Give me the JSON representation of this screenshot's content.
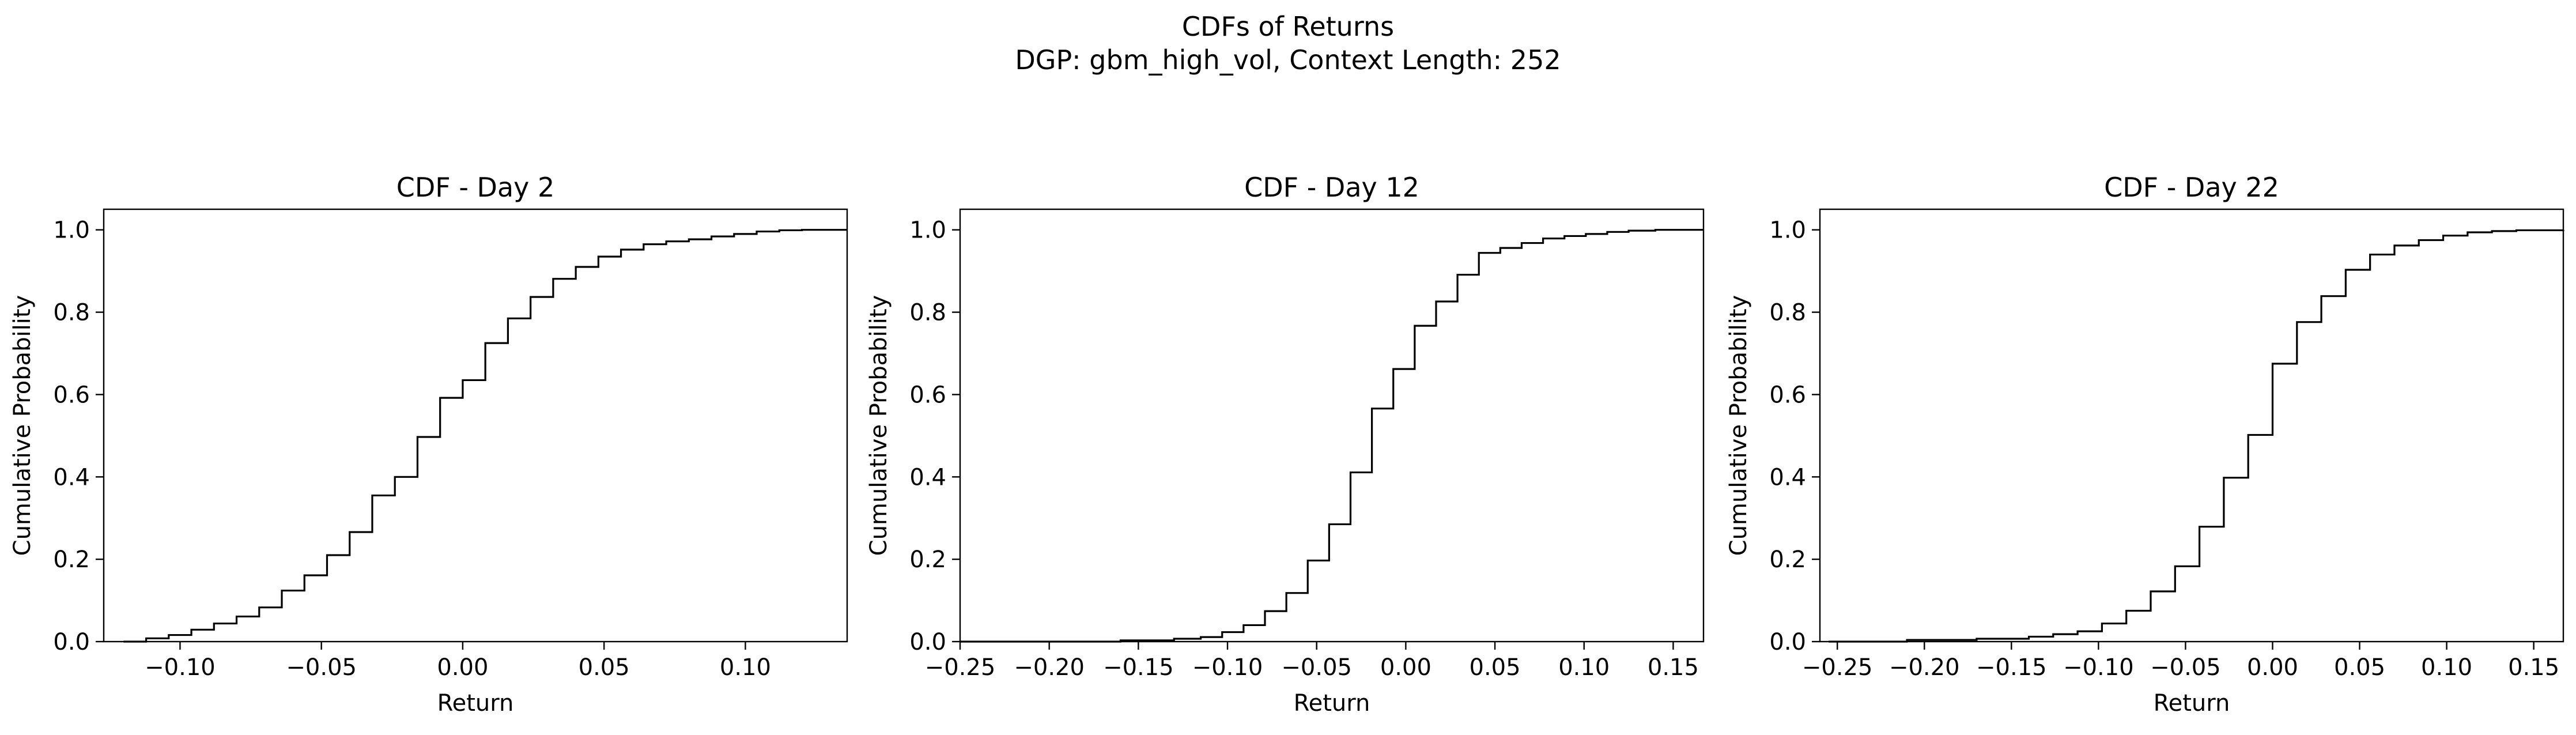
{
  "figure": {
    "title_line1": "CDFs of Returns",
    "title_line2": "DGP: gbm_high_vol, Context Length: 252"
  },
  "chart_data": [
    {
      "type": "line",
      "style": "step",
      "title": "CDF - Day 2",
      "xlabel": "Return",
      "ylabel": "Cumulative Probability",
      "xlim": [
        -0.127,
        0.136
      ],
      "ylim": [
        0,
        1.05
      ],
      "xticks": [
        -0.1,
        -0.05,
        0.0,
        0.05,
        0.1
      ],
      "xtick_labels": [
        "−0.10",
        "−0.05",
        "0.00",
        "0.05",
        "0.10"
      ],
      "yticks": [
        0.0,
        0.2,
        0.4,
        0.6,
        0.8,
        1.0
      ],
      "ytick_labels": [
        "0.0",
        "0.2",
        "0.4",
        "0.6",
        "0.8",
        "1.0"
      ],
      "grid": false,
      "line_color": "#000000",
      "x": [
        -0.12,
        -0.112,
        -0.104,
        -0.096,
        -0.088,
        -0.08,
        -0.072,
        -0.064,
        -0.056,
        -0.048,
        -0.04,
        -0.032,
        -0.024,
        -0.016,
        -0.008,
        0.0,
        0.008,
        0.016,
        0.024,
        0.032,
        0.04,
        0.048,
        0.056,
        0.064,
        0.072,
        0.08,
        0.088,
        0.096,
        0.104,
        0.112,
        0.12,
        0.128,
        0.136
      ],
      "y": [
        0.0,
        0.008,
        0.016,
        0.029,
        0.044,
        0.061,
        0.083,
        0.124,
        0.161,
        0.21,
        0.266,
        0.355,
        0.4,
        0.497,
        0.592,
        0.635,
        0.725,
        0.785,
        0.837,
        0.881,
        0.91,
        0.935,
        0.952,
        0.965,
        0.972,
        0.977,
        0.984,
        0.99,
        0.996,
        0.999,
        1.0,
        1.0,
        1.0
      ]
    },
    {
      "type": "line",
      "style": "step",
      "title": "CDF - Day 12",
      "xlabel": "Return",
      "ylabel": "Cumulative Probability",
      "xlim": [
        -0.25,
        0.167
      ],
      "ylim": [
        0,
        1.05
      ],
      "xticks": [
        -0.25,
        -0.2,
        -0.15,
        -0.1,
        -0.05,
        0.0,
        0.05,
        0.1,
        0.15
      ],
      "xtick_labels": [
        "−0.25",
        "−0.20",
        "−0.15",
        "−0.10",
        "−0.05",
        "0.00",
        "0.05",
        "0.10",
        "0.15"
      ],
      "yticks": [
        0.0,
        0.2,
        0.4,
        0.6,
        0.8,
        1.0
      ],
      "ytick_labels": [
        "0.0",
        "0.2",
        "0.4",
        "0.6",
        "0.8",
        "1.0"
      ],
      "grid": false,
      "line_color": "#000000",
      "x": [
        -0.25,
        -0.16,
        -0.13,
        -0.115,
        -0.103,
        -0.091,
        -0.079,
        -0.067,
        -0.055,
        -0.043,
        -0.031,
        -0.019,
        -0.007,
        0.005,
        0.017,
        0.029,
        0.041,
        0.053,
        0.065,
        0.077,
        0.089,
        0.101,
        0.113,
        0.125,
        0.14,
        0.167
      ],
      "y": [
        0.0,
        0.003,
        0.007,
        0.011,
        0.023,
        0.04,
        0.074,
        0.118,
        0.197,
        0.285,
        0.411,
        0.566,
        0.662,
        0.767,
        0.826,
        0.891,
        0.944,
        0.956,
        0.968,
        0.979,
        0.985,
        0.99,
        0.995,
        0.998,
        1.0,
        1.0
      ]
    },
    {
      "type": "line",
      "style": "step",
      "title": "CDF - Day 22",
      "xlabel": "Return",
      "ylabel": "Cumulative Probability",
      "xlim": [
        -0.26,
        0.167
      ],
      "ylim": [
        0,
        1.05
      ],
      "xticks": [
        -0.25,
        -0.2,
        -0.15,
        -0.1,
        -0.05,
        0.0,
        0.05,
        0.1,
        0.15
      ],
      "xtick_labels": [
        "−0.25",
        "−0.20",
        "−0.15",
        "−0.10",
        "−0.05",
        "0.00",
        "0.05",
        "0.10",
        "0.15"
      ],
      "yticks": [
        0.0,
        0.2,
        0.4,
        0.6,
        0.8,
        1.0
      ],
      "ytick_labels": [
        "0.0",
        "0.2",
        "0.4",
        "0.6",
        "0.8",
        "1.0"
      ],
      "grid": false,
      "line_color": "#000000",
      "x": [
        -0.255,
        -0.21,
        -0.17,
        -0.14,
        -0.126,
        -0.112,
        -0.098,
        -0.084,
        -0.07,
        -0.056,
        -0.042,
        -0.028,
        -0.014,
        0.0,
        0.014,
        0.028,
        0.042,
        0.056,
        0.07,
        0.084,
        0.098,
        0.112,
        0.126,
        0.14,
        0.167
      ],
      "y": [
        0.0,
        0.004,
        0.007,
        0.012,
        0.018,
        0.025,
        0.044,
        0.075,
        0.122,
        0.183,
        0.279,
        0.398,
        0.502,
        0.675,
        0.776,
        0.839,
        0.903,
        0.94,
        0.962,
        0.975,
        0.986,
        0.994,
        0.997,
        0.999,
        1.0
      ]
    }
  ]
}
